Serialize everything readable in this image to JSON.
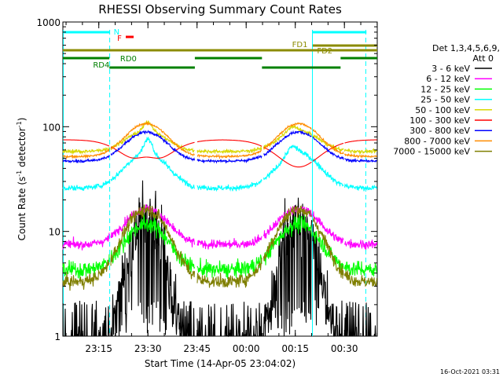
{
  "chart_data": {
    "type": "line",
    "title": "RHESSI Observing Summary Count Rates",
    "xlabel": "Start Time (14-Apr-05 23:04:02)",
    "ylabel_main": "Count Rate (s",
    "ylabel_sup": "-1",
    "ylabel_mid": " detector",
    "ylabel_sup2": "-1",
    "ylabel_end": ")",
    "yscale": "log",
    "ylim": [
      1,
      1000
    ],
    "xlim_minutes": [
      0,
      96
    ],
    "x_ticks": [
      {
        "t": 10.97,
        "label": "23:15"
      },
      {
        "t": 25.97,
        "label": "23:30"
      },
      {
        "t": 40.97,
        "label": "23:45"
      },
      {
        "t": 55.97,
        "label": "00:00"
      },
      {
        "t": 70.97,
        "label": "00:15"
      },
      {
        "t": 85.97,
        "label": "00:30"
      }
    ],
    "y_ticks": [
      {
        "v": 1,
        "label": "1"
      },
      {
        "v": 10,
        "label": "10"
      },
      {
        "v": 100,
        "label": "100"
      },
      {
        "v": 1000,
        "label": "1000"
      }
    ],
    "legend_header": [
      "Det 1,3,4,5,6,9,",
      "Att 0"
    ],
    "series": [
      {
        "name": "3 - 6 keV",
        "color": "#000000"
      },
      {
        "name": "6 - 12 keV",
        "color": "#ff00ff"
      },
      {
        "name": "12 - 25 keV",
        "color": "#00ff00"
      },
      {
        "name": "25 - 50 keV",
        "color": "#00ffff"
      },
      {
        "name": "50 - 100 keV",
        "color": "#d8d800"
      },
      {
        "name": "100 - 300 keV",
        "color": "#ff0000"
      },
      {
        "name": "300 - 800 keV",
        "color": "#0000ff"
      },
      {
        "name": "800 - 7000 keV",
        "color": "#ff8c00"
      },
      {
        "name": "7000 - 15000 keV",
        "color": "#7f7f00"
      }
    ],
    "flags": {
      "N_label": "N",
      "F_label": "F",
      "FD1_label": "FD1",
      "FD2_label": "FD2",
      "RD0_label": "RD0",
      "RD4_label": "RD4",
      "night_color": "#00ffff",
      "flare_color": "#ff0000",
      "fd_color": "#8b8b00",
      "rd_color": "#008000"
    },
    "timestamp": "16-Oct-2021 03:31"
  }
}
